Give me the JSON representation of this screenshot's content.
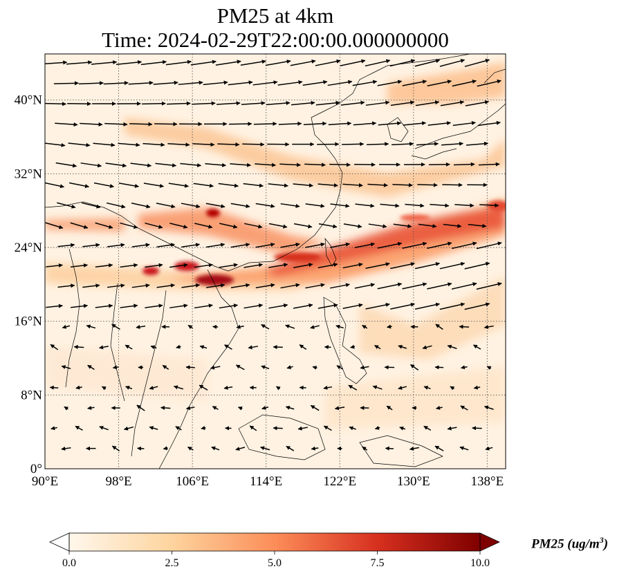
{
  "title": {
    "line1": "PM25 at 4km",
    "line2": "Time: 2024-02-29T22:00:00.000000000"
  },
  "map": {
    "extent": {
      "lon_min": 90,
      "lon_max": 140,
      "lat_min": 0,
      "lat_max": 45
    },
    "gridlines": "dotted",
    "x_ticks": [
      "90°E",
      "98°E",
      "106°E",
      "114°E",
      "122°E",
      "130°E",
      "138°E"
    ],
    "x_tick_values": [
      90,
      98,
      106,
      114,
      122,
      130,
      138
    ],
    "y_ticks": [
      "0°",
      "8°N",
      "16°N",
      "24°N",
      "32°N",
      "40°N"
    ],
    "y_tick_values": [
      0,
      8,
      16,
      24,
      32,
      40
    ],
    "field": "PM25 concentration with wind vectors",
    "colors": {
      "low": "#fff5eb",
      "mid": "#fd8d3c",
      "high": "#7f0000",
      "arrow": "#000000"
    }
  },
  "colorbar": {
    "label": "PM25 (ug/m",
    "label_sup": "3",
    "label_end": ")",
    "ticks": [
      "0.0",
      "2.5",
      "5.0",
      "7.5",
      "10.0"
    ],
    "tick_values": [
      0,
      2.5,
      5,
      7.5,
      10
    ],
    "range": [
      0,
      10
    ],
    "extend": "both",
    "colormap": "OrRd"
  }
}
